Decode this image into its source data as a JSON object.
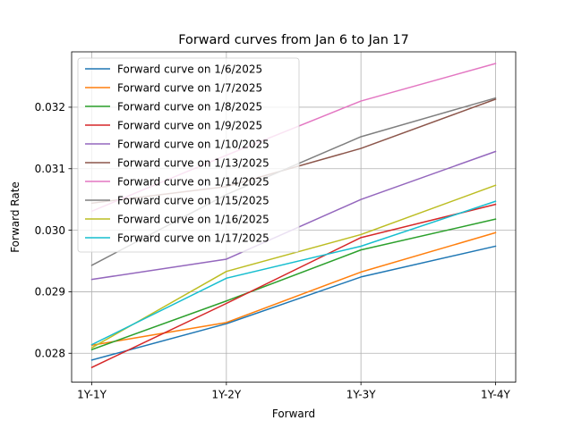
{
  "chart_data": {
    "type": "line",
    "title": "Forward curves from Jan 6 to Jan 17",
    "xlabel": "Forward",
    "ylabel": "Forward Rate",
    "categories": [
      "1Y-1Y",
      "1Y-2Y",
      "1Y-3Y",
      "1Y-4Y"
    ],
    "ylim": [
      0.02753,
      0.0329
    ],
    "yticks": [
      0.028,
      0.029,
      0.03,
      0.031,
      0.032
    ],
    "ytick_labels": [
      "0.028",
      "0.029",
      "0.030",
      "0.031",
      "0.032"
    ],
    "grid": true,
    "legend_position": "upper-left",
    "series": [
      {
        "name": "Forward curve on 1/6/2025",
        "color": "#1f77b4",
        "values": [
          0.02789,
          0.02848,
          0.02924,
          0.02974
        ]
      },
      {
        "name": "Forward curve on 1/7/2025",
        "color": "#ff7f0e",
        "values": [
          0.02813,
          0.0285,
          0.02932,
          0.02996
        ]
      },
      {
        "name": "Forward curve on 1/8/2025",
        "color": "#2ca02c",
        "values": [
          0.02806,
          0.02885,
          0.02968,
          0.03018
        ]
      },
      {
        "name": "Forward curve on 1/9/2025",
        "color": "#d62728",
        "values": [
          0.02777,
          0.02881,
          0.02988,
          0.03042
        ]
      },
      {
        "name": "Forward curve on 1/10/2025",
        "color": "#9467bd",
        "values": [
          0.0292,
          0.02953,
          0.0305,
          0.03128
        ]
      },
      {
        "name": "Forward curve on 1/13/2025",
        "color": "#8c564b",
        "values": [
          0.03044,
          0.03071,
          0.03133,
          0.03213
        ]
      },
      {
        "name": "Forward curve on 1/14/2025",
        "color": "#e377c2",
        "values": [
          0.03031,
          0.03122,
          0.0321,
          0.03271
        ]
      },
      {
        "name": "Forward curve on 1/15/2025",
        "color": "#7f7f7f",
        "values": [
          0.02943,
          0.03058,
          0.03152,
          0.03215
        ]
      },
      {
        "name": "Forward curve on 1/16/2025",
        "color": "#bcbd22",
        "values": [
          0.02809,
          0.02933,
          0.02993,
          0.03073
        ]
      },
      {
        "name": "Forward curve on 1/17/2025",
        "color": "#17becf",
        "values": [
          0.02814,
          0.02922,
          0.02974,
          0.03047
        ]
      }
    ]
  }
}
